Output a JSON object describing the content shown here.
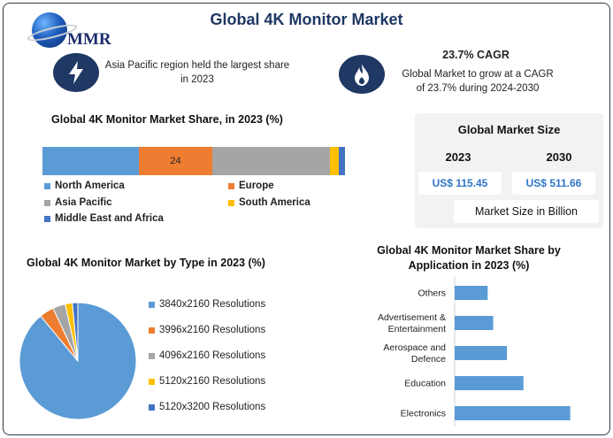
{
  "logo_text": "MMR",
  "title": "Global 4K Monitor Market",
  "info_left": {
    "icon": "lightning-icon",
    "text": "Asia Pacific region held the largest share in 2023"
  },
  "info_right": {
    "icon": "flame-icon",
    "title": "23.7% CAGR",
    "text": "Global Market to grow at a CAGR of 23.7% during 2024-2030"
  },
  "market_size": {
    "title": "Global Market Size",
    "year_a": "2023",
    "year_b": "2030",
    "value_a": "US$ 115.45",
    "value_b": "US$ 511.66",
    "unit": "Market Size in Billion"
  },
  "colors": {
    "north_america": "#5b9bd5",
    "europe": "#ed7d31",
    "asia_pacific": "#a5a5a5",
    "south_america": "#ffc000",
    "mea": "#4472c4",
    "bar": "#5b9bd5",
    "navy": "#1f3864"
  },
  "chart_data": [
    {
      "type": "bar",
      "subtype": "100% stacked horizontal",
      "title": "Global 4K Monitor Market Share, in 2023 (%)",
      "series": [
        {
          "name": "North America",
          "value": 32
        },
        {
          "name": "Europe",
          "value": 24,
          "label": "24"
        },
        {
          "name": "Asia Pacific",
          "value": 39
        },
        {
          "name": "South America",
          "value": 3
        },
        {
          "name": "Middle East and Africa",
          "value": 2
        }
      ],
      "legend_placement": "bottom"
    },
    {
      "type": "pie",
      "title": "Global 4K Monitor Market by Type in 2023 (%)",
      "slices": [
        {
          "name": "3840x2160 Resolutions",
          "value": 89
        },
        {
          "name": "3996x2160 Resolutions",
          "value": 4
        },
        {
          "name": "4096x2160 Resolutions",
          "value": 3.5
        },
        {
          "name": "5120x2160 Resolutions",
          "value": 2
        },
        {
          "name": "5120x3200 Resolutions",
          "value": 1.5
        }
      ],
      "legend_placement": "right"
    },
    {
      "type": "bar",
      "subtype": "horizontal",
      "title": "Global 4K Monitor Market Share by Application in 2023 (%)",
      "categories": [
        "Others",
        "Advertisement & Entertainment",
        "Aerospace and Defence",
        "Education",
        "Electronics"
      ],
      "values": [
        12,
        14,
        19,
        25,
        42
      ],
      "xlim": [
        0,
        45
      ],
      "grid": false
    }
  ]
}
